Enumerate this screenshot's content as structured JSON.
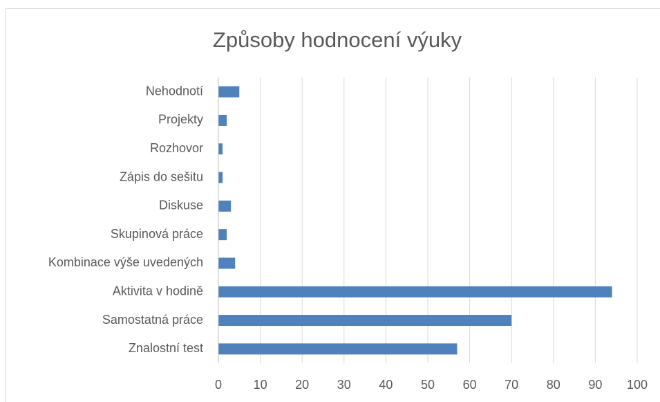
{
  "chart_data": {
    "type": "bar",
    "orientation": "horizontal",
    "title": "Způsoby hodnocení výuky",
    "categories": [
      "Nehodnotí",
      "Projekty",
      "Rozhovor",
      "Zápis do sešitu",
      "Diskuse",
      "Skupinová práce",
      "Kombinace výše uvedených",
      "Aktivita v hodině",
      "Samostatná práce",
      "Znalostní test"
    ],
    "values": [
      5,
      2,
      1,
      1,
      3,
      2,
      4,
      94,
      70,
      57
    ],
    "color": "#4f81bd",
    "xlim": [
      0,
      100
    ],
    "xticks": [
      0,
      10,
      20,
      30,
      40,
      50,
      60,
      70,
      80,
      90,
      100
    ],
    "grid": true
  }
}
